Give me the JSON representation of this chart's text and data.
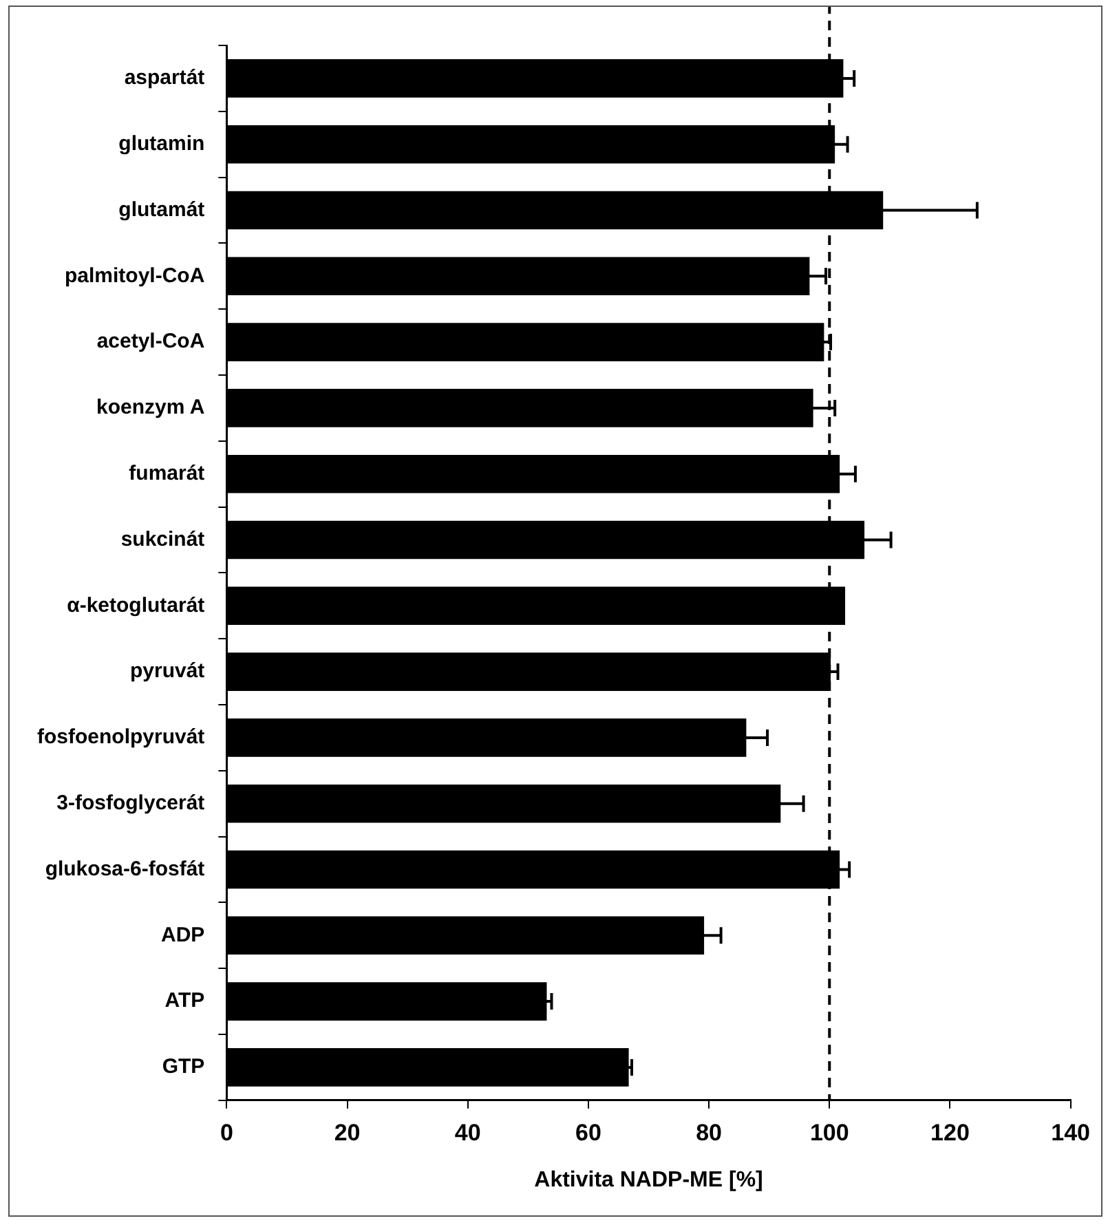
{
  "chart_data": {
    "type": "bar",
    "orientation": "horizontal",
    "xlabel": "Aktivita NADP-ME [%]",
    "categories": [
      "aspartát",
      "glutamin",
      "glutamát",
      "palmitoyl-CoA",
      "acetyl-CoA",
      "koenzym A",
      "fumarát",
      "sukcinát",
      "α-ketoglutarát",
      "pyruvát",
      "fosfoenolpyruvát",
      "3-fosfoglycerát",
      "glukosa-6-fosfát",
      "ADP",
      "ATP",
      "GTP"
    ],
    "values": [
      102.3,
      100.9,
      108.9,
      96.7,
      99.1,
      97.3,
      101.7,
      105.8,
      102.6,
      100.2,
      86.2,
      91.9,
      101.7,
      79.2,
      53.1,
      66.7
    ],
    "errors": [
      1.8,
      2.1,
      15.6,
      2.7,
      1.1,
      3.6,
      2.6,
      4.4,
      null,
      1.2,
      3.5,
      3.8,
      1.6,
      2.8,
      0.8,
      0.5
    ],
    "color": "#000000",
    "xlim": [
      0,
      140
    ],
    "xticks": [
      0,
      20,
      40,
      60,
      80,
      100,
      120,
      140
    ],
    "grid": false,
    "legend": false,
    "ref_lines": [
      {
        "axis": "x",
        "value": 100,
        "line_style": "dashed",
        "color": "#000000"
      }
    ]
  }
}
